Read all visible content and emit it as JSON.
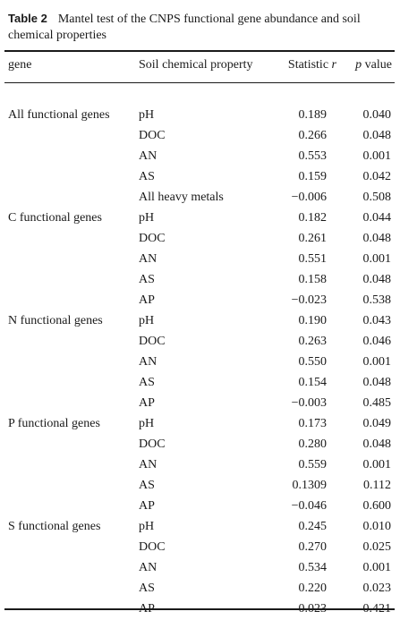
{
  "caption": {
    "label": "Table 2",
    "text": "Mantel test of the CNPS functional gene abundance and soil chemical properties"
  },
  "headers": {
    "gene": "gene",
    "property": "Soil chemical property",
    "statistic": "Statistic",
    "statistic_symbol": "r",
    "p_symbol": "p",
    "p_word": "value"
  },
  "rows": [
    {
      "gene": "All functional genes",
      "property": "pH",
      "r": "0.189",
      "p": "0.040"
    },
    {
      "gene": "",
      "property": "DOC",
      "r": "0.266",
      "p": "0.048"
    },
    {
      "gene": "",
      "property": "AN",
      "r": "0.553",
      "p": "0.001"
    },
    {
      "gene": "",
      "property": "AS",
      "r": "0.159",
      "p": "0.042"
    },
    {
      "gene": "",
      "property": "All heavy metals",
      "r": "−0.006",
      "p": "0.508"
    },
    {
      "gene": "C functional genes",
      "property": "pH",
      "r": "0.182",
      "p": "0.044"
    },
    {
      "gene": "",
      "property": "DOC",
      "r": "0.261",
      "p": "0.048"
    },
    {
      "gene": "",
      "property": "AN",
      "r": "0.551",
      "p": "0.001"
    },
    {
      "gene": "",
      "property": "AS",
      "r": "0.158",
      "p": "0.048"
    },
    {
      "gene": "",
      "property": "AP",
      "r": "−0.023",
      "p": "0.538"
    },
    {
      "gene": "N functional genes",
      "property": "pH",
      "r": "0.190",
      "p": "0.043"
    },
    {
      "gene": "",
      "property": "DOC",
      "r": "0.263",
      "p": "0.046"
    },
    {
      "gene": "",
      "property": "AN",
      "r": "0.550",
      "p": "0.001"
    },
    {
      "gene": "",
      "property": "AS",
      "r": "0.154",
      "p": "0.048"
    },
    {
      "gene": "",
      "property": "AP",
      "r": "−0.003",
      "p": "0.485"
    },
    {
      "gene": "P functional genes",
      "property": "pH",
      "r": "0.173",
      "p": "0.049"
    },
    {
      "gene": "",
      "property": "DOC",
      "r": "0.280",
      "p": "0.048"
    },
    {
      "gene": "",
      "property": "AN",
      "r": "0.559",
      "p": "0.001"
    },
    {
      "gene": "",
      "property": "AS",
      "r": "0.1309",
      "p": "0.112"
    },
    {
      "gene": "",
      "property": "AP",
      "r": "−0.046",
      "p": "0.600"
    },
    {
      "gene": "S functional genes",
      "property": "pH",
      "r": "0.245",
      "p": "0.010"
    },
    {
      "gene": "",
      "property": "DOC",
      "r": "0.270",
      "p": "0.025"
    },
    {
      "gene": "",
      "property": "AN",
      "r": "0.534",
      "p": "0.001"
    },
    {
      "gene": "",
      "property": "AS",
      "r": "0.220",
      "p": "0.023"
    },
    {
      "gene": "",
      "property": "AP",
      "r": "0.023",
      "p": "0.421"
    }
  ]
}
